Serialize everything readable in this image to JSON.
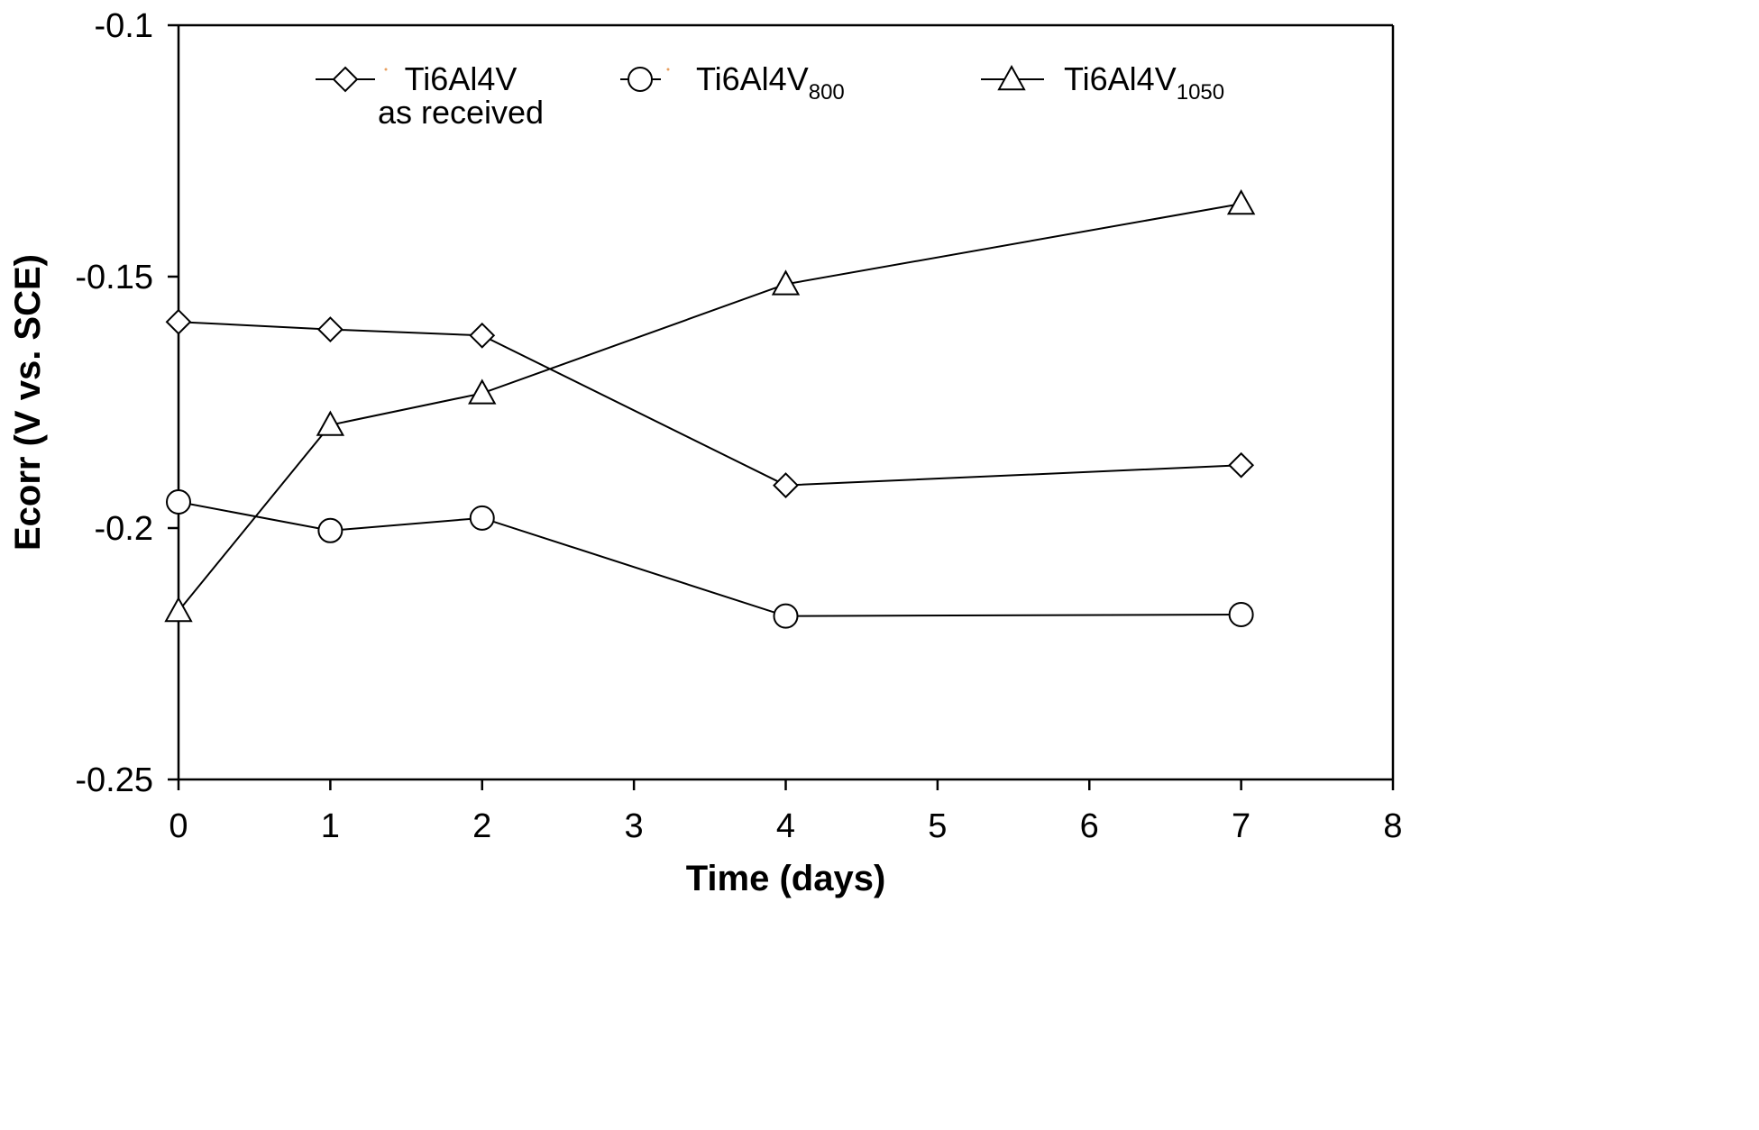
{
  "chart_data": {
    "type": "line",
    "title": "",
    "xlabel": "Time (days)",
    "ylabel": "Ecorr  (V vs.  SCE)",
    "xlim": [
      0,
      8
    ],
    "ylim": [
      -0.25,
      -0.1
    ],
    "x_ticks": [
      0,
      1,
      2,
      3,
      4,
      5,
      6,
      7,
      8
    ],
    "y_ticks": [
      -0.25,
      -0.2,
      -0.15,
      -0.1
    ],
    "x_tick_labels": [
      "0",
      "1",
      "2",
      "3",
      "4",
      "5",
      "6",
      "7",
      "8"
    ],
    "y_tick_labels": [
      "-0.25",
      "-0.2",
      "-0.15",
      "-0.1"
    ],
    "grid": false,
    "legend_position": "top",
    "series": [
      {
        "name": "Ti6Al4V as received",
        "label_line1": "Ti6Al4V",
        "label_line2": "as received",
        "marker": "diamond",
        "x": [
          0,
          1,
          2,
          4,
          7
        ],
        "values": [
          -0.159,
          -0.1605,
          -0.1617,
          -0.1915,
          -0.1875
        ]
      },
      {
        "name": "Ti6Al4V800",
        "label_main": "Ti6Al4V",
        "label_sub": "800",
        "marker": "circle",
        "x": [
          0,
          1,
          2,
          4,
          7
        ],
        "values": [
          -0.1948,
          -0.2005,
          -0.198,
          -0.2175,
          -0.2172
        ]
      },
      {
        "name": "Ti6Al4V1050",
        "label_main": "Ti6Al4V",
        "label_sub": "1050",
        "marker": "triangle",
        "x": [
          0,
          1,
          2,
          4,
          7
        ],
        "values": [
          -0.2165,
          -0.1795,
          -0.1732,
          -0.1515,
          -0.1355
        ]
      }
    ]
  },
  "colors": {
    "line": "#000000",
    "marker_fill": "#ffffff",
    "legend_dot": "#e8a060"
  }
}
